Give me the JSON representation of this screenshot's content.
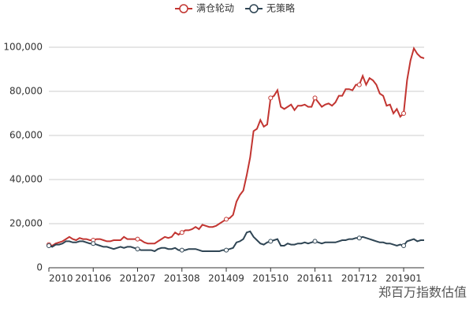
{
  "chart_data": {
    "type": "line",
    "categories": [
      "2010",
      null,
      null,
      null,
      null,
      null,
      null,
      null,
      null,
      null,
      null,
      null,
      null,
      "201106",
      null,
      null,
      null,
      null,
      null,
      null,
      null,
      null,
      null,
      null,
      null,
      null,
      "201207",
      null,
      null,
      null,
      null,
      null,
      null,
      null,
      null,
      null,
      null,
      null,
      null,
      "201308",
      null,
      null,
      null,
      null,
      null,
      null,
      null,
      null,
      null,
      null,
      null,
      null,
      "201409",
      null,
      null,
      null,
      null,
      null,
      null,
      null,
      null,
      null,
      null,
      null,
      null,
      "201510",
      null,
      null,
      null,
      null,
      null,
      null,
      null,
      null,
      null,
      null,
      null,
      null,
      "201611",
      null,
      null,
      null,
      null,
      null,
      null,
      null,
      null,
      null,
      null,
      null,
      null,
      "201712",
      null,
      null,
      null,
      null,
      null,
      null,
      null,
      null,
      null,
      null,
      null,
      null,
      "201901",
      null,
      null,
      null,
      null,
      null,
      null
    ],
    "series": [
      {
        "name": "满仓轮动",
        "color": "#c23531",
        "values": [
          10500,
          10000,
          11000,
          11500,
          12000,
          13000,
          14000,
          13000,
          12500,
          13500,
          13000,
          13000,
          12500,
          12500,
          13000,
          13000,
          12500,
          12000,
          12000,
          12500,
          12500,
          12500,
          14000,
          13000,
          13000,
          13000,
          13000,
          12500,
          11500,
          11000,
          11000,
          11000,
          12000,
          13000,
          14000,
          13500,
          14000,
          16000,
          15000,
          16000,
          17000,
          17000,
          17500,
          18500,
          17500,
          19500,
          19000,
          18500,
          18500,
          19000,
          20000,
          21000,
          22000,
          22500,
          24000,
          30000,
          33000,
          35000,
          42000,
          50000,
          62000,
          63000,
          67000,
          64000,
          65000,
          77000,
          78000,
          80500,
          73000,
          72000,
          73000,
          74000,
          71500,
          73500,
          73500,
          74000,
          73000,
          73000,
          77000,
          75000,
          73000,
          74000,
          74500,
          73500,
          75000,
          78000,
          78000,
          81000,
          81000,
          80500,
          83000,
          83000,
          87000,
          83000,
          86000,
          85000,
          83000,
          79000,
          78000,
          73500,
          74000,
          70000,
          72000,
          68500,
          70000,
          85000,
          94000,
          99500,
          97000,
          95500,
          95000
        ]
      },
      {
        "name": "无策略",
        "color": "#2f4554",
        "values": [
          10000,
          9500,
          10500,
          10500,
          11000,
          12000,
          12000,
          11500,
          11500,
          12000,
          12000,
          11500,
          11000,
          11000,
          10500,
          10000,
          9500,
          9500,
          9000,
          8500,
          9000,
          9500,
          9000,
          9500,
          9500,
          9000,
          8500,
          8000,
          8000,
          8000,
          8000,
          7500,
          8500,
          9000,
          9000,
          8500,
          8500,
          9000,
          8000,
          8000,
          8000,
          8500,
          8500,
          8500,
          8000,
          7500,
          7500,
          7500,
          7500,
          7500,
          7500,
          8000,
          8000,
          8500,
          9000,
          11500,
          12000,
          13000,
          16000,
          16500,
          14000,
          12500,
          11000,
          10500,
          11500,
          12000,
          12500,
          13000,
          10000,
          10000,
          11000,
          10500,
          10500,
          11000,
          11000,
          11500,
          11000,
          11500,
          12000,
          11500,
          11000,
          11500,
          11500,
          11500,
          11500,
          12000,
          12500,
          12500,
          13000,
          13000,
          13500,
          13500,
          14000,
          13500,
          13000,
          12500,
          12000,
          11500,
          11500,
          11000,
          11000,
          10500,
          10000,
          10500,
          10000,
          12000,
          12500,
          13000,
          12000,
          12500,
          12500
        ]
      }
    ],
    "ylim": [
      0,
      100000
    ],
    "yticks": [
      0,
      {
        "value": 20000,
        "label": "20,000"
      },
      {
        "value": 40000,
        "label": "40,000"
      },
      {
        "value": 60000,
        "label": "60,000"
      },
      {
        "value": 80000,
        "label": "80,000"
      },
      {
        "value": 100000,
        "label": "100,000"
      }
    ],
    "grid": true,
    "legend": "top"
  },
  "watermark": "郑百万指数估值"
}
